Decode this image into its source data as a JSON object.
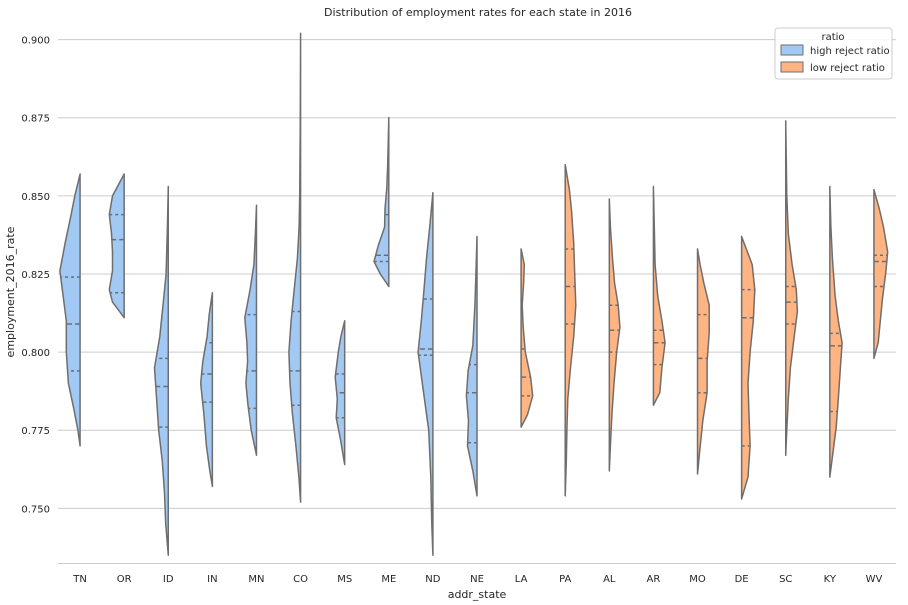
{
  "chart_data": {
    "type": "violin",
    "title": "Distribution of employment rates for each state in 2016",
    "xlabel": "addr_state",
    "ylabel": "employment_2016_rate",
    "ylim": [
      0.7325,
      0.905
    ],
    "yticks": [
      0.75,
      0.775,
      0.8,
      0.825,
      0.85,
      0.875,
      0.9
    ],
    "ytick_labels": [
      "0.750",
      "0.775",
      "0.800",
      "0.825",
      "0.850",
      "0.875",
      "0.900"
    ],
    "grid": "horizontal",
    "legend": {
      "title": "ratio",
      "placement": "top-right",
      "entries": [
        {
          "name": "high reject ratio",
          "color": "#a1c9f4"
        },
        {
          "name": "low reject ratio",
          "color": "#ffb482"
        }
      ]
    },
    "categories": [
      "TN",
      "OR",
      "ID",
      "IN",
      "MN",
      "CO",
      "MS",
      "ME",
      "ND",
      "NE",
      "LA",
      "PA",
      "AL",
      "AR",
      "MO",
      "DE",
      "SC",
      "KY",
      "WV"
    ],
    "violins": [
      {
        "state": "TN",
        "group": "high reject ratio",
        "side": "left",
        "min": 0.77,
        "max": 0.857,
        "quartiles": [
          0.794,
          0.809,
          0.824
        ],
        "profile": [
          [
            0.77,
            0.0
          ],
          [
            0.775,
            0.1
          ],
          [
            0.782,
            0.3
          ],
          [
            0.79,
            0.55
          ],
          [
            0.8,
            0.65
          ],
          [
            0.81,
            0.65
          ],
          [
            0.818,
            0.8
          ],
          [
            0.826,
            0.95
          ],
          [
            0.835,
            0.7
          ],
          [
            0.843,
            0.45
          ],
          [
            0.85,
            0.25
          ],
          [
            0.857,
            0.0
          ]
        ]
      },
      {
        "state": "OR",
        "group": "high reject ratio",
        "side": "left",
        "min": 0.811,
        "max": 0.857,
        "quartiles": [
          0.819,
          0.836,
          0.844
        ],
        "profile": [
          [
            0.811,
            0.0
          ],
          [
            0.816,
            0.55
          ],
          [
            0.82,
            0.7
          ],
          [
            0.826,
            0.55
          ],
          [
            0.832,
            0.55
          ],
          [
            0.838,
            0.6
          ],
          [
            0.844,
            0.7
          ],
          [
            0.85,
            0.55
          ],
          [
            0.857,
            0.0
          ]
        ]
      },
      {
        "state": "ID",
        "group": "high reject ratio",
        "side": "left",
        "min": 0.735,
        "max": 0.853,
        "quartiles": [
          0.776,
          0.789,
          0.798
        ],
        "profile": [
          [
            0.735,
            0.0
          ],
          [
            0.745,
            0.12
          ],
          [
            0.755,
            0.18
          ],
          [
            0.765,
            0.28
          ],
          [
            0.775,
            0.45
          ],
          [
            0.785,
            0.55
          ],
          [
            0.795,
            0.65
          ],
          [
            0.805,
            0.4
          ],
          [
            0.815,
            0.25
          ],
          [
            0.825,
            0.1
          ],
          [
            0.84,
            0.04
          ],
          [
            0.853,
            0.0
          ]
        ]
      },
      {
        "state": "IN",
        "group": "high reject ratio",
        "side": "left",
        "min": 0.757,
        "max": 0.819,
        "quartiles": [
          0.784,
          0.793,
          0.803
        ],
        "profile": [
          [
            0.757,
            0.0
          ],
          [
            0.762,
            0.12
          ],
          [
            0.77,
            0.28
          ],
          [
            0.78,
            0.4
          ],
          [
            0.79,
            0.55
          ],
          [
            0.797,
            0.45
          ],
          [
            0.805,
            0.25
          ],
          [
            0.812,
            0.15
          ],
          [
            0.819,
            0.0
          ]
        ]
      },
      {
        "state": "MN",
        "group": "high reject ratio",
        "side": "left",
        "min": 0.767,
        "max": 0.847,
        "quartiles": [
          0.782,
          0.794,
          0.812
        ],
        "profile": [
          [
            0.767,
            0.0
          ],
          [
            0.775,
            0.25
          ],
          [
            0.783,
            0.4
          ],
          [
            0.79,
            0.5
          ],
          [
            0.797,
            0.42
          ],
          [
            0.803,
            0.45
          ],
          [
            0.811,
            0.55
          ],
          [
            0.82,
            0.3
          ],
          [
            0.828,
            0.12
          ],
          [
            0.838,
            0.05
          ],
          [
            0.847,
            0.0
          ]
        ]
      },
      {
        "state": "CO",
        "group": "high reject ratio",
        "side": "left",
        "min": 0.752,
        "max": 0.902,
        "quartiles": [
          0.783,
          0.794,
          0.813
        ],
        "profile": [
          [
            0.752,
            0.0
          ],
          [
            0.76,
            0.08
          ],
          [
            0.77,
            0.22
          ],
          [
            0.78,
            0.38
          ],
          [
            0.79,
            0.5
          ],
          [
            0.8,
            0.55
          ],
          [
            0.81,
            0.45
          ],
          [
            0.82,
            0.3
          ],
          [
            0.83,
            0.15
          ],
          [
            0.84,
            0.07
          ],
          [
            0.85,
            0.04
          ],
          [
            0.87,
            0.02
          ],
          [
            0.902,
            0.0
          ]
        ]
      },
      {
        "state": "MS",
        "group": "high reject ratio",
        "side": "left",
        "min": 0.764,
        "max": 0.81,
        "quartiles": [
          0.779,
          0.787,
          0.793
        ],
        "profile": [
          [
            0.764,
            0.0
          ],
          [
            0.772,
            0.2
          ],
          [
            0.779,
            0.4
          ],
          [
            0.785,
            0.35
          ],
          [
            0.792,
            0.45
          ],
          [
            0.8,
            0.3
          ],
          [
            0.805,
            0.18
          ],
          [
            0.81,
            0.0
          ]
        ]
      },
      {
        "state": "ME",
        "group": "high reject ratio",
        "side": "left",
        "min": 0.821,
        "max": 0.875,
        "quartiles": [
          0.829,
          0.831,
          0.844
        ],
        "profile": [
          [
            0.821,
            0.0
          ],
          [
            0.825,
            0.4
          ],
          [
            0.829,
            0.7
          ],
          [
            0.834,
            0.5
          ],
          [
            0.84,
            0.2
          ],
          [
            0.846,
            0.18
          ],
          [
            0.852,
            0.1
          ],
          [
            0.86,
            0.05
          ],
          [
            0.875,
            0.0
          ]
        ]
      },
      {
        "state": "ND",
        "group": "high reject ratio",
        "side": "left",
        "min": 0.735,
        "max": 0.851,
        "quartiles": [
          0.799,
          0.801,
          0.817
        ],
        "profile": [
          [
            0.735,
            0.0
          ],
          [
            0.745,
            0.05
          ],
          [
            0.76,
            0.1
          ],
          [
            0.775,
            0.2
          ],
          [
            0.79,
            0.5
          ],
          [
            0.8,
            0.7
          ],
          [
            0.81,
            0.55
          ],
          [
            0.82,
            0.42
          ],
          [
            0.83,
            0.3
          ],
          [
            0.84,
            0.15
          ],
          [
            0.851,
            0.0
          ]
        ]
      },
      {
        "state": "NE",
        "group": "high reject ratio",
        "side": "left",
        "min": 0.754,
        "max": 0.837,
        "quartiles": [
          0.771,
          0.787,
          0.796
        ],
        "profile": [
          [
            0.754,
            0.0
          ],
          [
            0.762,
            0.2
          ],
          [
            0.77,
            0.45
          ],
          [
            0.778,
            0.4
          ],
          [
            0.786,
            0.5
          ],
          [
            0.794,
            0.42
          ],
          [
            0.802,
            0.2
          ],
          [
            0.815,
            0.1
          ],
          [
            0.825,
            0.05
          ],
          [
            0.837,
            0.0
          ]
        ]
      },
      {
        "state": "LA",
        "group": "low reject ratio",
        "side": "right",
        "min": 0.776,
        "max": 0.833,
        "quartiles": [
          0.786,
          0.792,
          0.801
        ],
        "profile": [
          [
            0.776,
            0.0
          ],
          [
            0.78,
            0.3
          ],
          [
            0.786,
            0.55
          ],
          [
            0.792,
            0.45
          ],
          [
            0.8,
            0.2
          ],
          [
            0.808,
            0.1
          ],
          [
            0.815,
            0.05
          ],
          [
            0.822,
            0.12
          ],
          [
            0.828,
            0.15
          ],
          [
            0.833,
            0.0
          ]
        ]
      },
      {
        "state": "PA",
        "group": "low reject ratio",
        "side": "right",
        "min": 0.754,
        "max": 0.86,
        "quartiles": [
          0.809,
          0.821,
          0.833
        ],
        "profile": [
          [
            0.754,
            0.0
          ],
          [
            0.765,
            0.05
          ],
          [
            0.775,
            0.08
          ],
          [
            0.785,
            0.12
          ],
          [
            0.795,
            0.25
          ],
          [
            0.805,
            0.4
          ],
          [
            0.815,
            0.5
          ],
          [
            0.825,
            0.45
          ],
          [
            0.835,
            0.4
          ],
          [
            0.845,
            0.3
          ],
          [
            0.852,
            0.2
          ],
          [
            0.86,
            0.0
          ]
        ]
      },
      {
        "state": "AL",
        "group": "low reject ratio",
        "side": "right",
        "min": 0.762,
        "max": 0.849,
        "quartiles": [
          0.8,
          0.807,
          0.815
        ],
        "profile": [
          [
            0.762,
            0.0
          ],
          [
            0.77,
            0.05
          ],
          [
            0.78,
            0.12
          ],
          [
            0.79,
            0.22
          ],
          [
            0.8,
            0.35
          ],
          [
            0.808,
            0.5
          ],
          [
            0.815,
            0.42
          ],
          [
            0.822,
            0.25
          ],
          [
            0.83,
            0.15
          ],
          [
            0.84,
            0.05
          ],
          [
            0.849,
            0.0
          ]
        ]
      },
      {
        "state": "AR",
        "group": "low reject ratio",
        "side": "right",
        "min": 0.783,
        "max": 0.853,
        "quartiles": [
          0.796,
          0.803,
          0.807
        ],
        "profile": [
          [
            0.783,
            0.0
          ],
          [
            0.787,
            0.3
          ],
          [
            0.795,
            0.4
          ],
          [
            0.803,
            0.55
          ],
          [
            0.81,
            0.4
          ],
          [
            0.818,
            0.2
          ],
          [
            0.828,
            0.08
          ],
          [
            0.84,
            0.04
          ],
          [
            0.853,
            0.0
          ]
        ]
      },
      {
        "state": "MO",
        "group": "low reject ratio",
        "side": "right",
        "min": 0.761,
        "max": 0.833,
        "quartiles": [
          0.787,
          0.798,
          0.812
        ],
        "profile": [
          [
            0.761,
            0.0
          ],
          [
            0.768,
            0.1
          ],
          [
            0.778,
            0.25
          ],
          [
            0.787,
            0.45
          ],
          [
            0.797,
            0.45
          ],
          [
            0.806,
            0.55
          ],
          [
            0.815,
            0.55
          ],
          [
            0.822,
            0.3
          ],
          [
            0.828,
            0.12
          ],
          [
            0.833,
            0.0
          ]
        ]
      },
      {
        "state": "DE",
        "group": "low reject ratio",
        "side": "right",
        "min": 0.753,
        "max": 0.837,
        "quartiles": [
          0.77,
          0.811,
          0.82
        ],
        "profile": [
          [
            0.753,
            0.0
          ],
          [
            0.76,
            0.3
          ],
          [
            0.77,
            0.4
          ],
          [
            0.78,
            0.35
          ],
          [
            0.79,
            0.3
          ],
          [
            0.8,
            0.4
          ],
          [
            0.81,
            0.55
          ],
          [
            0.82,
            0.62
          ],
          [
            0.828,
            0.5
          ],
          [
            0.837,
            0.0
          ]
        ]
      },
      {
        "state": "SC",
        "group": "low reject ratio",
        "side": "right",
        "min": 0.767,
        "max": 0.874,
        "quartiles": [
          0.809,
          0.816,
          0.821
        ],
        "profile": [
          [
            0.767,
            0.0
          ],
          [
            0.775,
            0.05
          ],
          [
            0.785,
            0.12
          ],
          [
            0.795,
            0.22
          ],
          [
            0.805,
            0.4
          ],
          [
            0.813,
            0.55
          ],
          [
            0.82,
            0.5
          ],
          [
            0.828,
            0.3
          ],
          [
            0.838,
            0.12
          ],
          [
            0.85,
            0.05
          ],
          [
            0.874,
            0.0
          ]
        ]
      },
      {
        "state": "KY",
        "group": "low reject ratio",
        "side": "right",
        "min": 0.76,
        "max": 0.853,
        "quartiles": [
          0.781,
          0.802,
          0.806
        ],
        "profile": [
          [
            0.76,
            0.0
          ],
          [
            0.768,
            0.15
          ],
          [
            0.776,
            0.3
          ],
          [
            0.785,
            0.4
          ],
          [
            0.795,
            0.5
          ],
          [
            0.803,
            0.58
          ],
          [
            0.81,
            0.4
          ],
          [
            0.818,
            0.25
          ],
          [
            0.83,
            0.12
          ],
          [
            0.84,
            0.05
          ],
          [
            0.853,
            0.0
          ]
        ]
      },
      {
        "state": "WV",
        "group": "low reject ratio",
        "side": "right",
        "min": 0.798,
        "max": 0.852,
        "quartiles": [
          0.821,
          0.829,
          0.831
        ],
        "profile": [
          [
            0.798,
            0.0
          ],
          [
            0.803,
            0.2
          ],
          [
            0.81,
            0.3
          ],
          [
            0.817,
            0.4
          ],
          [
            0.825,
            0.55
          ],
          [
            0.832,
            0.65
          ],
          [
            0.84,
            0.45
          ],
          [
            0.846,
            0.25
          ],
          [
            0.852,
            0.0
          ]
        ]
      }
    ]
  }
}
